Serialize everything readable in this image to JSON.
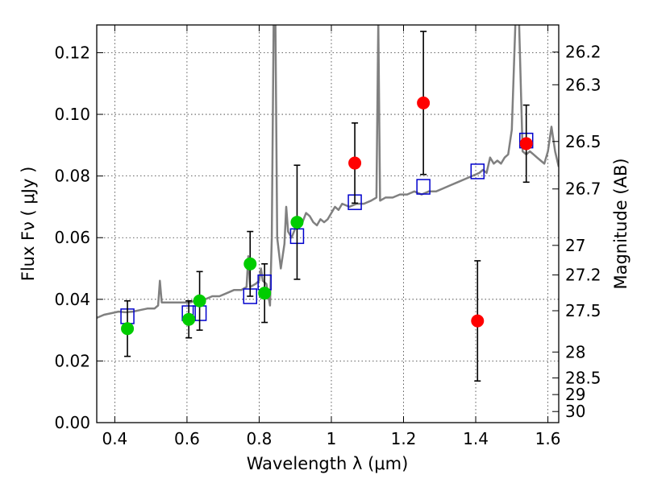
{
  "chart_data": {
    "type": "scatter",
    "xlabel": "Wavelength  λ (μm)",
    "ylabel": "Flux  Fν  ( μJy )",
    "y2label": "Magnitude (AB)",
    "xlim": [
      0.35,
      1.63
    ],
    "ylim": [
      0.0,
      0.129
    ],
    "grid": true,
    "x_ticks": [
      0.4,
      0.6,
      0.8,
      1.0,
      1.2,
      1.4,
      1.6
    ],
    "x_tick_labels": [
      "0.4",
      "0.6",
      "0.8",
      "1",
      "1.2",
      "1.4",
      "1.6"
    ],
    "y_ticks": [
      0.0,
      0.02,
      0.04,
      0.06,
      0.08,
      0.1,
      0.12
    ],
    "y_tick_labels": [
      "0.00",
      "0.02",
      "0.04",
      "0.06",
      "0.08",
      "0.10",
      "0.12"
    ],
    "magnitude_ticks": [
      {
        "label": "26.2",
        "flux": 0.1202
      },
      {
        "label": "26.3",
        "flux": 0.1096
      },
      {
        "label": "26.5",
        "flux": 0.0912
      },
      {
        "label": "26.7",
        "flux": 0.0758
      },
      {
        "label": "27",
        "flux": 0.0575
      },
      {
        "label": "27.2",
        "flux": 0.0479
      },
      {
        "label": "27.5",
        "flux": 0.0363
      },
      {
        "label": "28",
        "flux": 0.0229
      },
      {
        "label": "28.5",
        "flux": 0.0145
      },
      {
        "label": "29",
        "flux": 0.0091
      },
      {
        "label": "30",
        "flux": 0.0036
      }
    ],
    "series": [
      {
        "type": "line",
        "color": "#808080",
        "points": [
          [
            0.35,
            0.034
          ],
          [
            0.37,
            0.035
          ],
          [
            0.39,
            0.0355
          ],
          [
            0.41,
            0.036
          ],
          [
            0.43,
            0.0358
          ],
          [
            0.45,
            0.036
          ],
          [
            0.47,
            0.0365
          ],
          [
            0.49,
            0.037
          ],
          [
            0.51,
            0.037
          ],
          [
            0.52,
            0.038
          ],
          [
            0.525,
            0.046
          ],
          [
            0.53,
            0.039
          ],
          [
            0.55,
            0.039
          ],
          [
            0.57,
            0.039
          ],
          [
            0.59,
            0.039
          ],
          [
            0.61,
            0.039
          ],
          [
            0.63,
            0.04
          ],
          [
            0.65,
            0.04
          ],
          [
            0.67,
            0.041
          ],
          [
            0.69,
            0.041
          ],
          [
            0.71,
            0.042
          ],
          [
            0.73,
            0.043
          ],
          [
            0.75,
            0.043
          ],
          [
            0.765,
            0.044
          ],
          [
            0.77,
            0.054
          ],
          [
            0.775,
            0.044
          ],
          [
            0.79,
            0.045
          ],
          [
            0.8,
            0.046
          ],
          [
            0.805,
            0.05
          ],
          [
            0.81,
            0.046
          ],
          [
            0.82,
            0.045
          ],
          [
            0.83,
            0.038
          ],
          [
            0.835,
            0.06
          ],
          [
            0.84,
            0.13
          ],
          [
            0.845,
            0.13
          ],
          [
            0.85,
            0.06
          ],
          [
            0.86,
            0.05
          ],
          [
            0.87,
            0.058
          ],
          [
            0.875,
            0.07
          ],
          [
            0.88,
            0.062
          ],
          [
            0.89,
            0.06
          ],
          [
            0.9,
            0.063
          ],
          [
            0.91,
            0.066
          ],
          [
            0.92,
            0.065
          ],
          [
            0.93,
            0.068
          ],
          [
            0.94,
            0.067
          ],
          [
            0.95,
            0.065
          ],
          [
            0.96,
            0.064
          ],
          [
            0.97,
            0.066
          ],
          [
            0.98,
            0.065
          ],
          [
            0.99,
            0.066
          ],
          [
            1.0,
            0.068
          ],
          [
            1.01,
            0.07
          ],
          [
            1.02,
            0.069
          ],
          [
            1.03,
            0.071
          ],
          [
            1.05,
            0.07
          ],
          [
            1.07,
            0.071
          ],
          [
            1.09,
            0.071
          ],
          [
            1.11,
            0.072
          ],
          [
            1.125,
            0.073
          ],
          [
            1.13,
            0.13
          ],
          [
            1.135,
            0.072
          ],
          [
            1.15,
            0.073
          ],
          [
            1.17,
            0.073
          ],
          [
            1.19,
            0.074
          ],
          [
            1.21,
            0.074
          ],
          [
            1.23,
            0.075
          ],
          [
            1.25,
            0.074
          ],
          [
            1.27,
            0.075
          ],
          [
            1.29,
            0.075
          ],
          [
            1.31,
            0.076
          ],
          [
            1.33,
            0.077
          ],
          [
            1.35,
            0.078
          ],
          [
            1.37,
            0.079
          ],
          [
            1.39,
            0.08
          ],
          [
            1.41,
            0.081
          ],
          [
            1.42,
            0.082
          ],
          [
            1.43,
            0.081
          ],
          [
            1.44,
            0.086
          ],
          [
            1.45,
            0.084
          ],
          [
            1.46,
            0.085
          ],
          [
            1.47,
            0.084
          ],
          [
            1.48,
            0.086
          ],
          [
            1.49,
            0.087
          ],
          [
            1.5,
            0.095
          ],
          [
            1.51,
            0.13
          ],
          [
            1.52,
            0.13
          ],
          [
            1.53,
            0.088
          ],
          [
            1.54,
            0.087
          ],
          [
            1.55,
            0.088
          ],
          [
            1.56,
            0.087
          ],
          [
            1.57,
            0.086
          ],
          [
            1.58,
            0.085
          ],
          [
            1.59,
            0.084
          ],
          [
            1.6,
            0.088
          ],
          [
            1.61,
            0.096
          ],
          [
            1.62,
            0.088
          ],
          [
            1.63,
            0.083
          ]
        ]
      },
      {
        "type": "scatter",
        "marker": "square-open",
        "color": "#0000cc",
        "points": [
          [
            0.435,
            0.0345
          ],
          [
            0.605,
            0.0355
          ],
          [
            0.635,
            0.0355
          ],
          [
            0.775,
            0.041
          ],
          [
            0.815,
            0.0455
          ],
          [
            0.905,
            0.0605
          ],
          [
            1.065,
            0.0715
          ],
          [
            1.255,
            0.0765
          ],
          [
            1.405,
            0.0815
          ],
          [
            1.54,
            0.0915
          ]
        ]
      },
      {
        "type": "scatter",
        "marker": "circle",
        "color": "#00cc00",
        "points": [
          {
            "x": 0.435,
            "y": 0.0305,
            "err": 0.009
          },
          {
            "x": 0.605,
            "y": 0.0335,
            "err": 0.006
          },
          {
            "x": 0.635,
            "y": 0.0395,
            "err": 0.0095
          },
          {
            "x": 0.775,
            "y": 0.0515,
            "err": 0.0105
          },
          {
            "x": 0.815,
            "y": 0.042,
            "err": 0.0095
          },
          {
            "x": 0.905,
            "y": 0.065,
            "err": 0.0185
          }
        ]
      },
      {
        "type": "scatter",
        "marker": "circle",
        "color": "#ff0000",
        "points": [
          {
            "x": 1.065,
            "y": 0.0842,
            "err": 0.013
          },
          {
            "x": 1.255,
            "y": 0.1037,
            "err": 0.0232
          },
          {
            "x": 1.405,
            "y": 0.033,
            "err": 0.0195
          },
          {
            "x": 1.54,
            "y": 0.0905,
            "err": 0.0125
          }
        ]
      }
    ]
  }
}
